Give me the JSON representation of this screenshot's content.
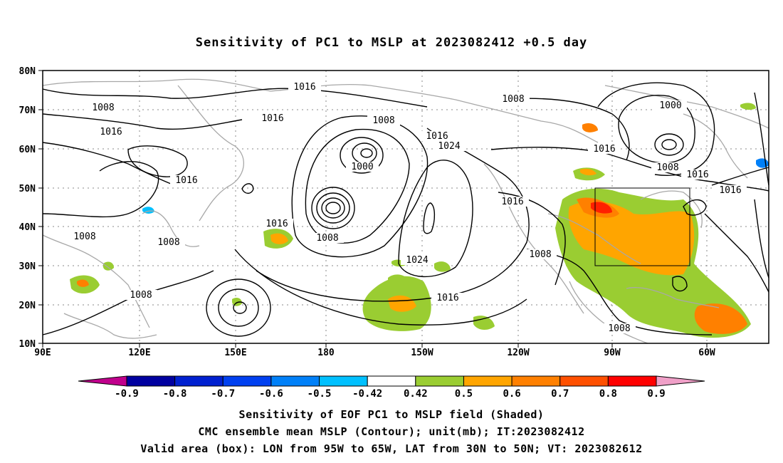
{
  "title": "Sensitivity of PC1 to MSLP at 2023082412 +0.5 day",
  "map": {
    "lon_labels": [
      "90E",
      "120E",
      "150E",
      "180",
      "150W",
      "120W",
      "90W",
      "60W"
    ],
    "lat_labels": [
      "80N",
      "70N",
      "60N",
      "50N",
      "40N",
      "30N",
      "20N",
      "10N"
    ],
    "contour_labels": [
      "1016",
      "1008",
      "1016",
      "1016",
      "1008",
      "1016",
      "1024",
      "1000",
      "1016",
      "1008",
      "1008",
      "1016",
      "1008",
      "1008",
      "1024",
      "1016",
      "1016",
      "1008",
      "1000",
      "1016",
      "1008",
      "1016",
      "1016",
      "1008",
      "1008"
    ],
    "valid_box": {
      "lon_from": "95W",
      "lon_to": "65W",
      "lat_from": "30N",
      "lat_to": "50N"
    }
  },
  "colorbar": {
    "labels": [
      "-0.9",
      "-0.8",
      "-0.7",
      "-0.6",
      "-0.5",
      "-0.42",
      "0.42",
      "0.5",
      "0.6",
      "0.7",
      "0.8",
      "0.9"
    ],
    "colors": [
      "#0000a0",
      "#0020d0",
      "#0040f0",
      "#0080f8",
      "#00c0ff",
      "#ffffff",
      "#9acd32",
      "#ffa500",
      "#ff8000",
      "#ff5000",
      "#ff0000"
    ],
    "low_end_color": "#c0008c",
    "high_end_color": "#f0a0c8"
  },
  "captions": {
    "line1": "Sensitivity of EOF PC1 to MSLP field (Shaded)",
    "line2": "CMC ensemble mean MSLP (Contour); unit(mb); IT:2023082412",
    "line3": "Valid area (box): LON from 95W to 65W, LAT from 30N to 50N; VT: 2023082612"
  }
}
